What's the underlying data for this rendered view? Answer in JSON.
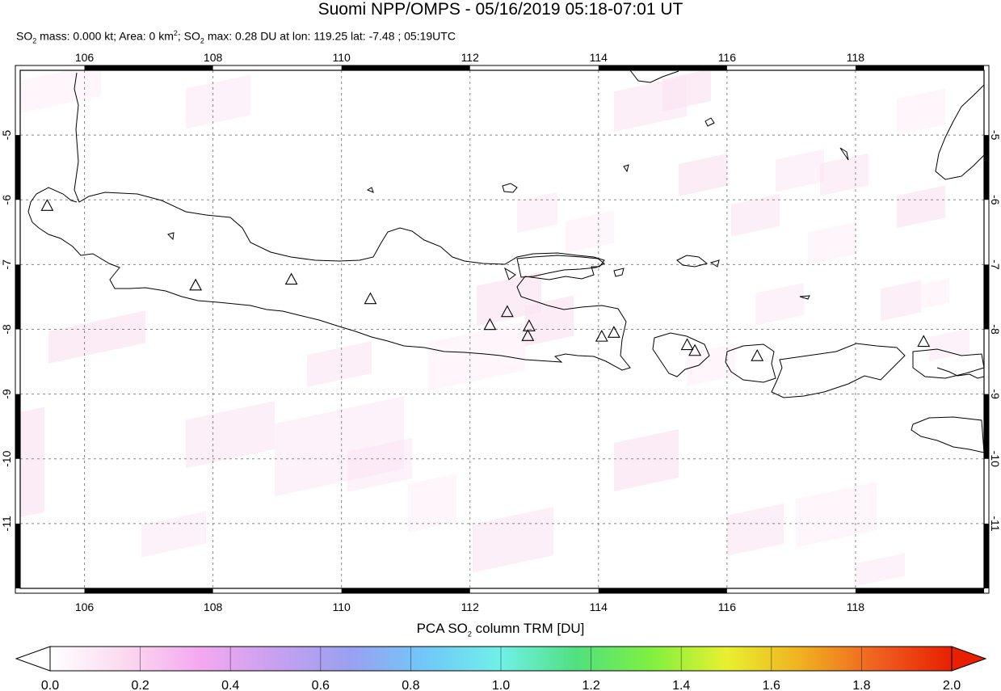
{
  "header": {
    "title": "Suomi NPP/OMPS - 05/16/2019 05:18-07:01 UT",
    "info": {
      "so2_mass_label": "SO",
      "so2_mass_text": " mass: 0.000 kt; Area: 0 km",
      "area_sup": "2",
      "so2_max_label": "; SO",
      "so2_max_text": " max: 0.28 DU at lon: 119.25 lat: -7.48 ; 05:19UTC",
      "sub_2": "2"
    }
  },
  "map": {
    "lon_range": [
      105,
      120
    ],
    "lat_range": [
      -12,
      -4
    ],
    "lon_ticks": [
      "106",
      "108",
      "110",
      "112",
      "114",
      "116",
      "118"
    ],
    "lat_ticks": [
      "-5",
      "-6",
      "-7",
      "-8",
      "-9",
      "-10",
      "-11"
    ],
    "volcanoes": [
      {
        "lon": 105.42,
        "lat": -6.1
      },
      {
        "lon": 107.73,
        "lat": -7.33
      },
      {
        "lon": 109.22,
        "lat": -7.24
      },
      {
        "lon": 110.45,
        "lat": -7.54
      },
      {
        "lon": 112.31,
        "lat": -7.94
      },
      {
        "lon": 112.58,
        "lat": -7.74
      },
      {
        "lon": 112.92,
        "lat": -7.96
      },
      {
        "lon": 112.9,
        "lat": -8.11
      },
      {
        "lon": 114.05,
        "lat": -8.12
      },
      {
        "lon": 114.24,
        "lat": -8.06
      },
      {
        "lon": 115.38,
        "lat": -8.25
      },
      {
        "lon": 115.5,
        "lat": -8.34
      },
      {
        "lon": 116.47,
        "lat": -8.42
      },
      {
        "lon": 119.06,
        "lat": -8.2
      }
    ]
  },
  "colorbar": {
    "title_prefix": "PCA SO",
    "title_sub": "2",
    "title_suffix": " column TRM [DU]",
    "ticks": [
      "0.0",
      "0.2",
      "0.4",
      "0.6",
      "0.8",
      "1.0",
      "1.2",
      "1.4",
      "1.6",
      "1.8",
      "2.0"
    ],
    "colors": [
      "#ffffff",
      "#fbd9f0",
      "#f3a8f0",
      "#c8a0f0",
      "#9aa0f0",
      "#70c8f8",
      "#70f0e8",
      "#50e080",
      "#80f040",
      "#e8f030",
      "#f0b020",
      "#f06020",
      "#e82000"
    ]
  },
  "colors": {
    "frame": "#000000",
    "grid": "#888888",
    "coast": "#000000",
    "so2_faint": "#fbe4f2"
  }
}
